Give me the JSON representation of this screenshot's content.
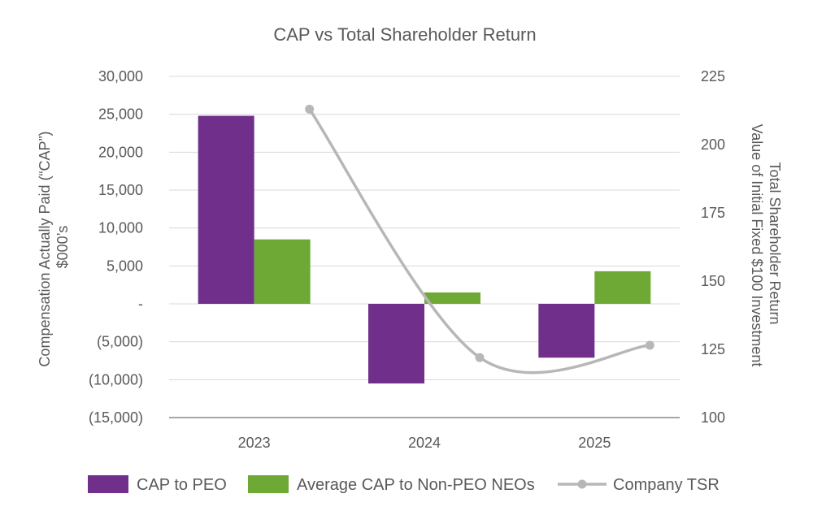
{
  "chart_data": {
    "type": "bar",
    "title": "CAP vs Total Shareholder Return",
    "categories": [
      "2023",
      "2024",
      "2025"
    ],
    "ylabel_left": [
      "Compensation Actually Paid (“CAP”)",
      "$000’s"
    ],
    "ylabel_right": [
      "Total Shareholder Return",
      "Value of Initial Fixed $100 Investment"
    ],
    "ylim_left": [
      -15000,
      30000
    ],
    "ylim_right": [
      100,
      225
    ],
    "left_ticks": [
      {
        "value": 30000,
        "label": "30,000"
      },
      {
        "value": 25000,
        "label": "25,000"
      },
      {
        "value": 20000,
        "label": "20,000"
      },
      {
        "value": 15000,
        "label": "15,000"
      },
      {
        "value": 10000,
        "label": "10,000"
      },
      {
        "value": 5000,
        "label": "5,000"
      },
      {
        "value": 0,
        "label": "-"
      },
      {
        "value": -5000,
        "label": "(5,000)"
      },
      {
        "value": -10000,
        "label": "(10,000)"
      },
      {
        "value": -15000,
        "label": "(15,000)"
      }
    ],
    "right_ticks": [
      {
        "value": 225,
        "label": "225"
      },
      {
        "value": 200,
        "label": "200"
      },
      {
        "value": 175,
        "label": "175"
      },
      {
        "value": 150,
        "label": "150"
      },
      {
        "value": 125,
        "label": "125"
      },
      {
        "value": 100,
        "label": "100"
      }
    ],
    "grid": true,
    "legend_position": "bottom",
    "series": [
      {
        "name": "CAP to PEO",
        "type": "bar",
        "axis": "left",
        "color": "#702f8a",
        "values": [
          24800,
          -10500,
          -7100
        ]
      },
      {
        "name": "Average CAP to Non-PEO NEOs",
        "type": "bar",
        "axis": "left",
        "color": "#6ea935",
        "values": [
          8500,
          1500,
          4300
        ]
      },
      {
        "name": "Company TSR",
        "type": "line",
        "axis": "right",
        "color": "#b7b7b7",
        "values": [
          213,
          122,
          126.5
        ]
      }
    ]
  }
}
